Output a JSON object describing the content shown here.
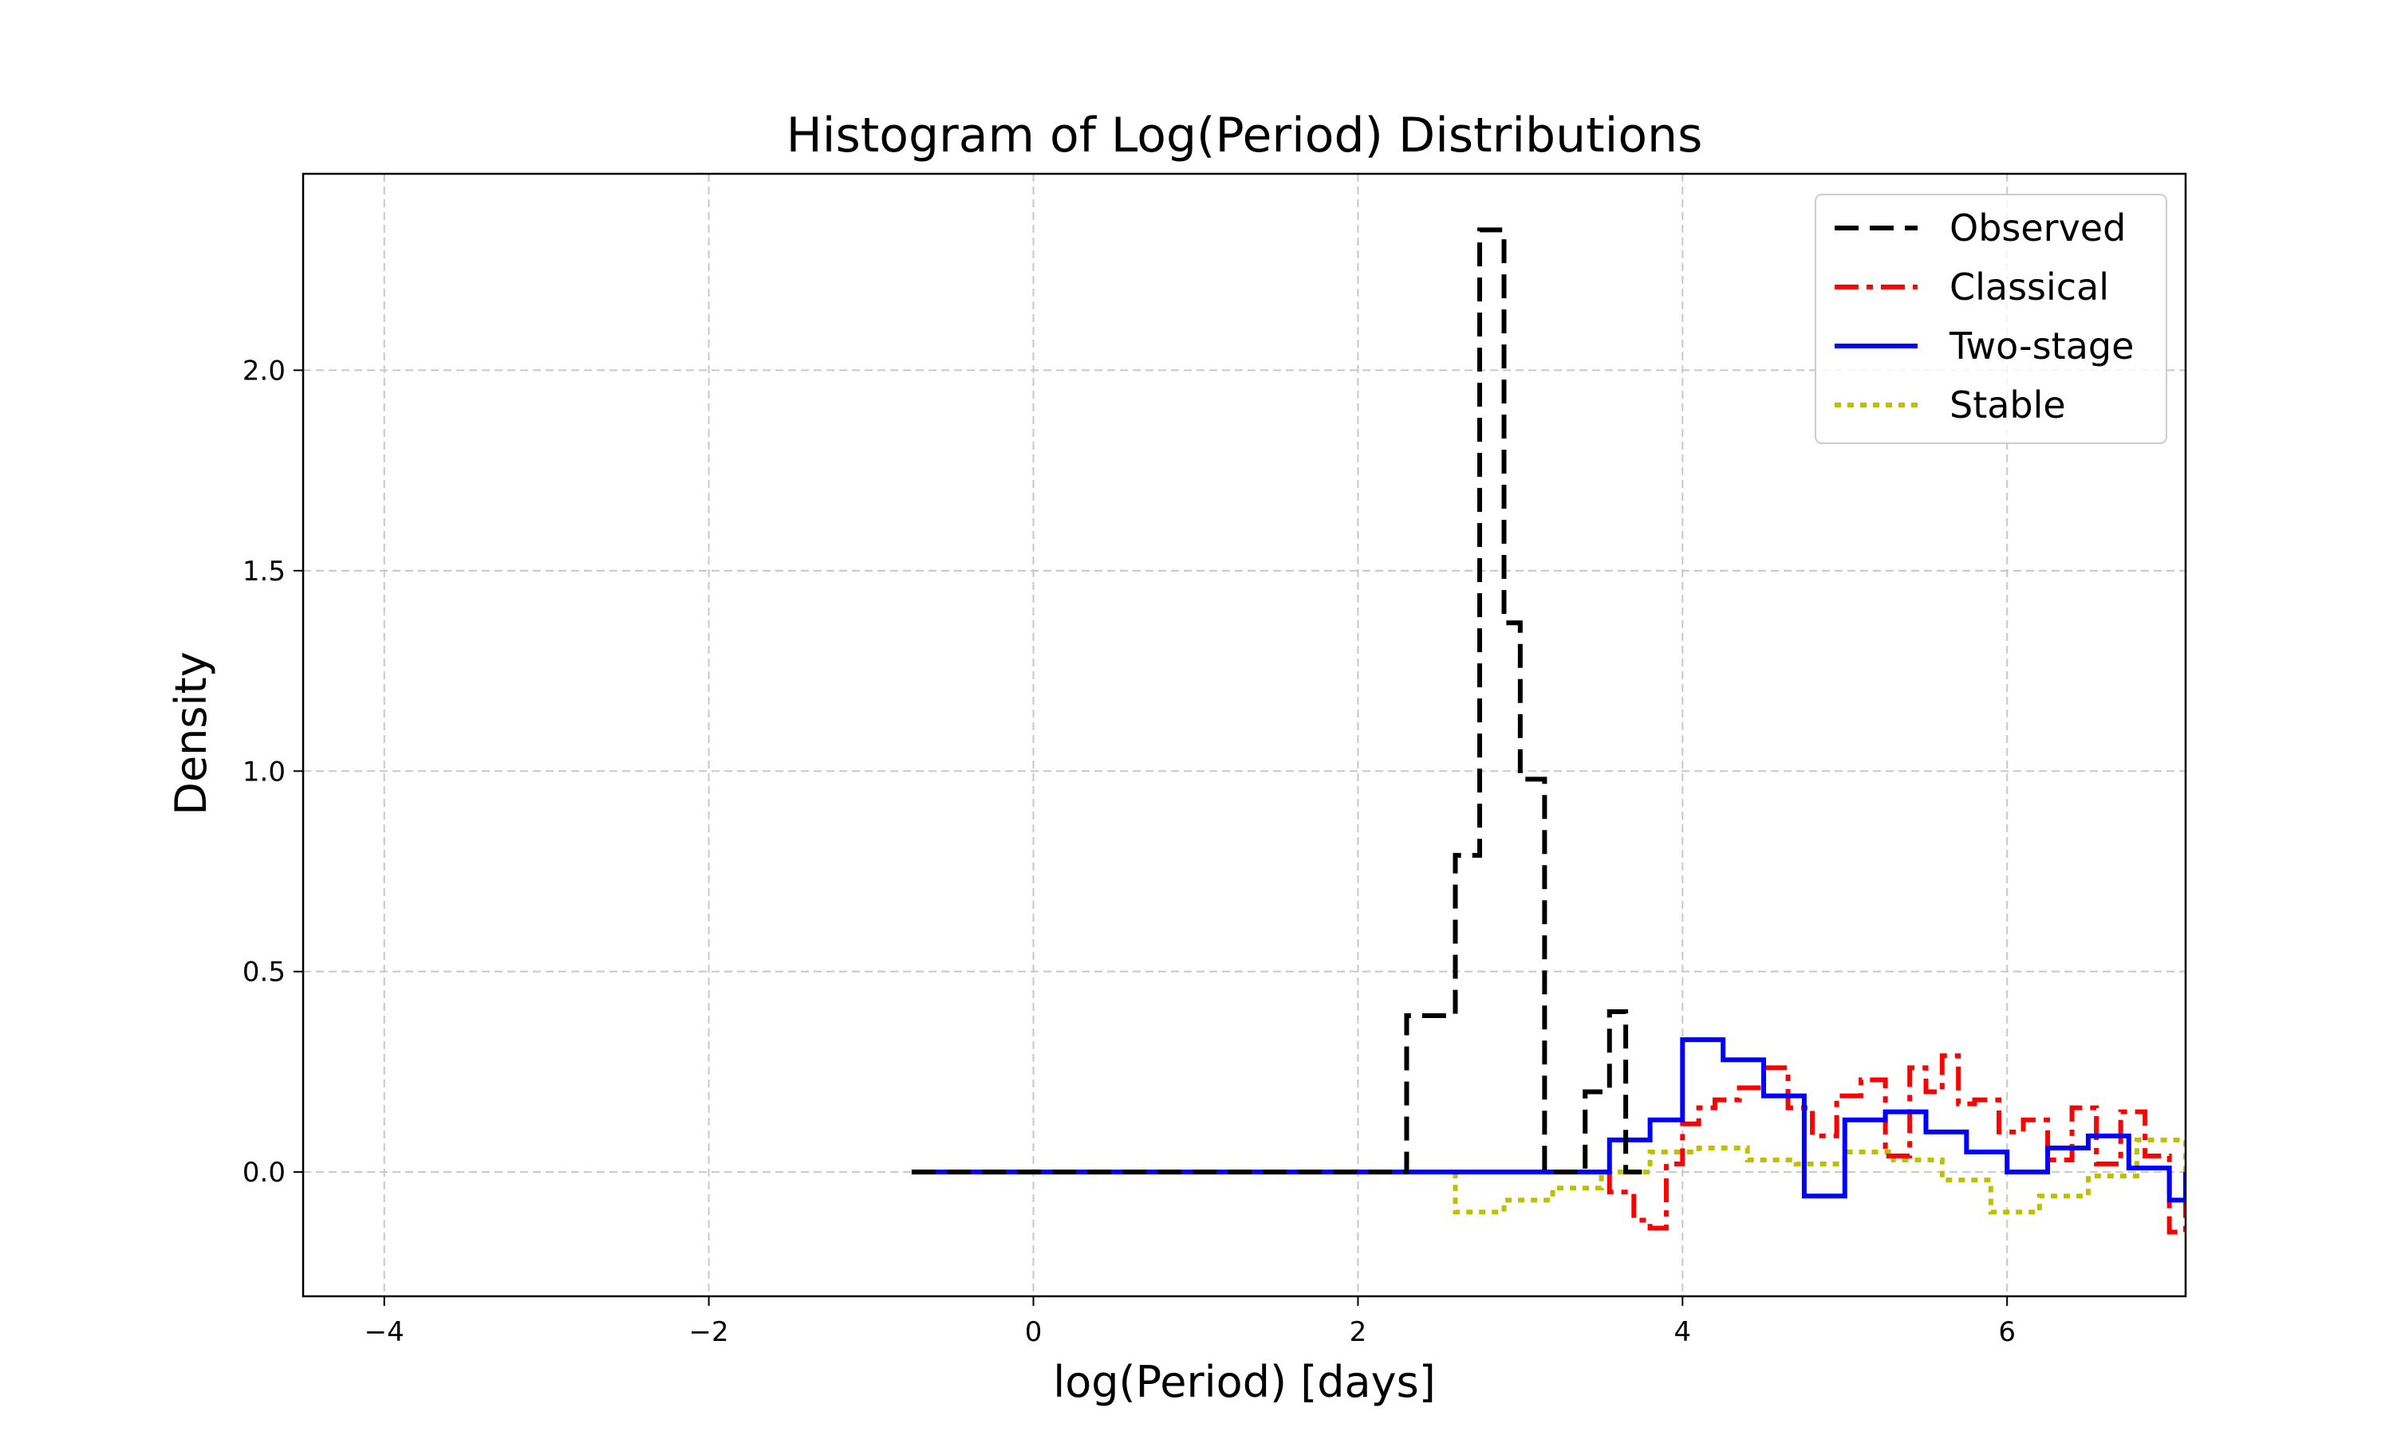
{
  "chart_data": {
    "type": "histogram-step",
    "title": "Histogram of Log(Period) Distributions",
    "xlabel": "log(Period) [days]",
    "ylabel": "Density",
    "xlim": [
      -4.5,
      7.1
    ],
    "ylim": [
      -0.31,
      2.49
    ],
    "xticks": [
      -4,
      -2,
      0,
      2,
      4,
      6
    ],
    "xtick_labels": [
      "−4",
      "−2",
      "0",
      "2",
      "4",
      "6"
    ],
    "yticks": [
      0.0,
      0.5,
      1.0,
      1.5,
      2.0
    ],
    "ytick_labels": [
      "0.0",
      "0.5",
      "1.0",
      "1.5",
      "2.0"
    ],
    "grid": true,
    "legend_position": "top-right",
    "series": [
      {
        "name": "Observed",
        "color": "#000000",
        "style": "dashed",
        "edges": [
          -0.75,
          2.3,
          2.6,
          2.75,
          2.9,
          3.0,
          3.15,
          3.25,
          3.4,
          3.55,
          3.65,
          3.75
        ],
        "values": [
          0.0,
          0.39,
          0.79,
          2.35,
          1.37,
          0.98,
          0.0,
          0.0,
          0.2,
          0.4,
          0.0
        ]
      },
      {
        "name": "Classical",
        "color": "#ff0000",
        "style": "dashdot",
        "edges": [
          3.55,
          3.7,
          3.8,
          3.9,
          4.0,
          4.1,
          4.2,
          4.35,
          4.5,
          4.65,
          4.8,
          4.95,
          5.1,
          5.25,
          5.4,
          5.5,
          5.6,
          5.7,
          5.8,
          5.95,
          6.1,
          6.25,
          6.4,
          6.55,
          6.7,
          6.85,
          7.0,
          7.1
        ],
        "values": [
          -0.05,
          -0.12,
          -0.14,
          0.02,
          0.12,
          0.16,
          0.18,
          0.21,
          0.26,
          0.16,
          0.09,
          0.19,
          0.23,
          0.04,
          0.26,
          0.2,
          0.29,
          0.17,
          0.18,
          0.1,
          0.13,
          0.03,
          0.16,
          0.02,
          0.15,
          0.04,
          -0.15
        ]
      },
      {
        "name": "Two-stage",
        "color": "#0000ff",
        "style": "solid",
        "edges": [
          -0.75,
          3.55,
          3.8,
          4.0,
          4.25,
          4.5,
          4.75,
          5.0,
          5.25,
          5.5,
          5.75,
          6.0,
          6.25,
          6.5,
          6.75,
          7.0,
          7.1
        ],
        "values": [
          0.0,
          0.08,
          0.13,
          0.33,
          0.28,
          0.19,
          -0.06,
          0.13,
          0.15,
          0.1,
          0.05,
          0.0,
          0.06,
          0.09,
          0.01,
          -0.07
        ]
      },
      {
        "name": "Stable",
        "color": "#bfbf00",
        "style": "dotted",
        "edges": [
          2.6,
          2.9,
          3.2,
          3.5,
          3.8,
          4.1,
          4.4,
          4.7,
          5.0,
          5.3,
          5.6,
          5.9,
          6.2,
          6.5,
          6.8,
          7.1
        ],
        "values": [
          -0.1,
          -0.07,
          -0.04,
          0.0,
          0.05,
          0.06,
          0.03,
          0.02,
          0.05,
          0.03,
          -0.02,
          -0.1,
          -0.06,
          -0.01,
          0.08
        ]
      }
    ]
  }
}
